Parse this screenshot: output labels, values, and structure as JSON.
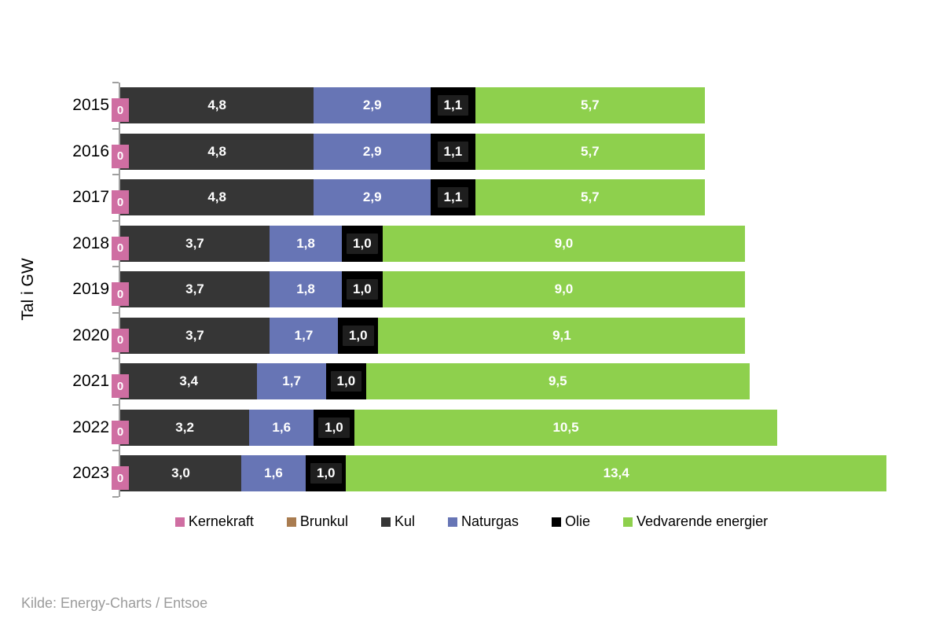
{
  "chart_data": {
    "type": "bar",
    "orientation": "horizontal",
    "stacked": true,
    "title": "",
    "xlabel": "",
    "ylabel": "Tal i GW",
    "unit": "GW",
    "x_max": 19.0,
    "grid": false,
    "legend_position": "bottom",
    "axis_color": "#a0a0a0",
    "categories": [
      "2015",
      "2016",
      "2017",
      "2018",
      "2019",
      "2020",
      "2021",
      "2022",
      "2023"
    ],
    "series": [
      {
        "key": "kernekraft",
        "name": "Kernekraft",
        "color": "#cf6ea2",
        "values": [
          0,
          0,
          0,
          0,
          0,
          0,
          0,
          0,
          0
        ],
        "labels": [
          "0",
          "0",
          "0",
          "0",
          "0",
          "0",
          "0",
          "0",
          "0"
        ]
      },
      {
        "key": "brunkul",
        "name": "Brunkul",
        "color": "#a97c50",
        "values": [
          0,
          0,
          0,
          0,
          0,
          0,
          0,
          0,
          0
        ],
        "labels": [
          "",
          "",
          "",
          "",
          "",
          "",
          "",
          "",
          ""
        ]
      },
      {
        "key": "kul",
        "name": "Kul",
        "color": "#363636",
        "values": [
          4.8,
          4.8,
          4.8,
          3.7,
          3.7,
          3.7,
          3.4,
          3.2,
          3.0
        ],
        "labels": [
          "4,8",
          "4,8",
          "4,8",
          "3,7",
          "3,7",
          "3,7",
          "3,4",
          "3,2",
          "3,0"
        ]
      },
      {
        "key": "naturgas",
        "name": "Naturgas",
        "color": "#6775b5",
        "values": [
          2.9,
          2.9,
          2.9,
          1.8,
          1.8,
          1.7,
          1.7,
          1.6,
          1.6
        ],
        "labels": [
          "2,9",
          "2,9",
          "2,9",
          "1,8",
          "1,8",
          "1,7",
          "1,7",
          "1,6",
          "1,6"
        ]
      },
      {
        "key": "olie",
        "name": "Olie",
        "color": "#000000",
        "label_box_color": "#1e1e1e",
        "values": [
          1.1,
          1.1,
          1.1,
          1.0,
          1.0,
          1.0,
          1.0,
          1.0,
          1.0
        ],
        "labels": [
          "1,1",
          "1,1",
          "1,1",
          "1,0",
          "1,0",
          "1,0",
          "1,0",
          "1,0",
          "1,0"
        ]
      },
      {
        "key": "vedvarende",
        "name": "Vedvarende energier",
        "color": "#8ed04d",
        "values": [
          5.7,
          5.7,
          5.7,
          9.0,
          9.0,
          9.1,
          9.5,
          10.5,
          13.4
        ],
        "labels": [
          "5,7",
          "5,7",
          "5,7",
          "9,0",
          "9,0",
          "9,1",
          "9,5",
          "10,5",
          "13,4"
        ]
      }
    ]
  },
  "source": "Kilde: Energy-Charts / Entsoe"
}
